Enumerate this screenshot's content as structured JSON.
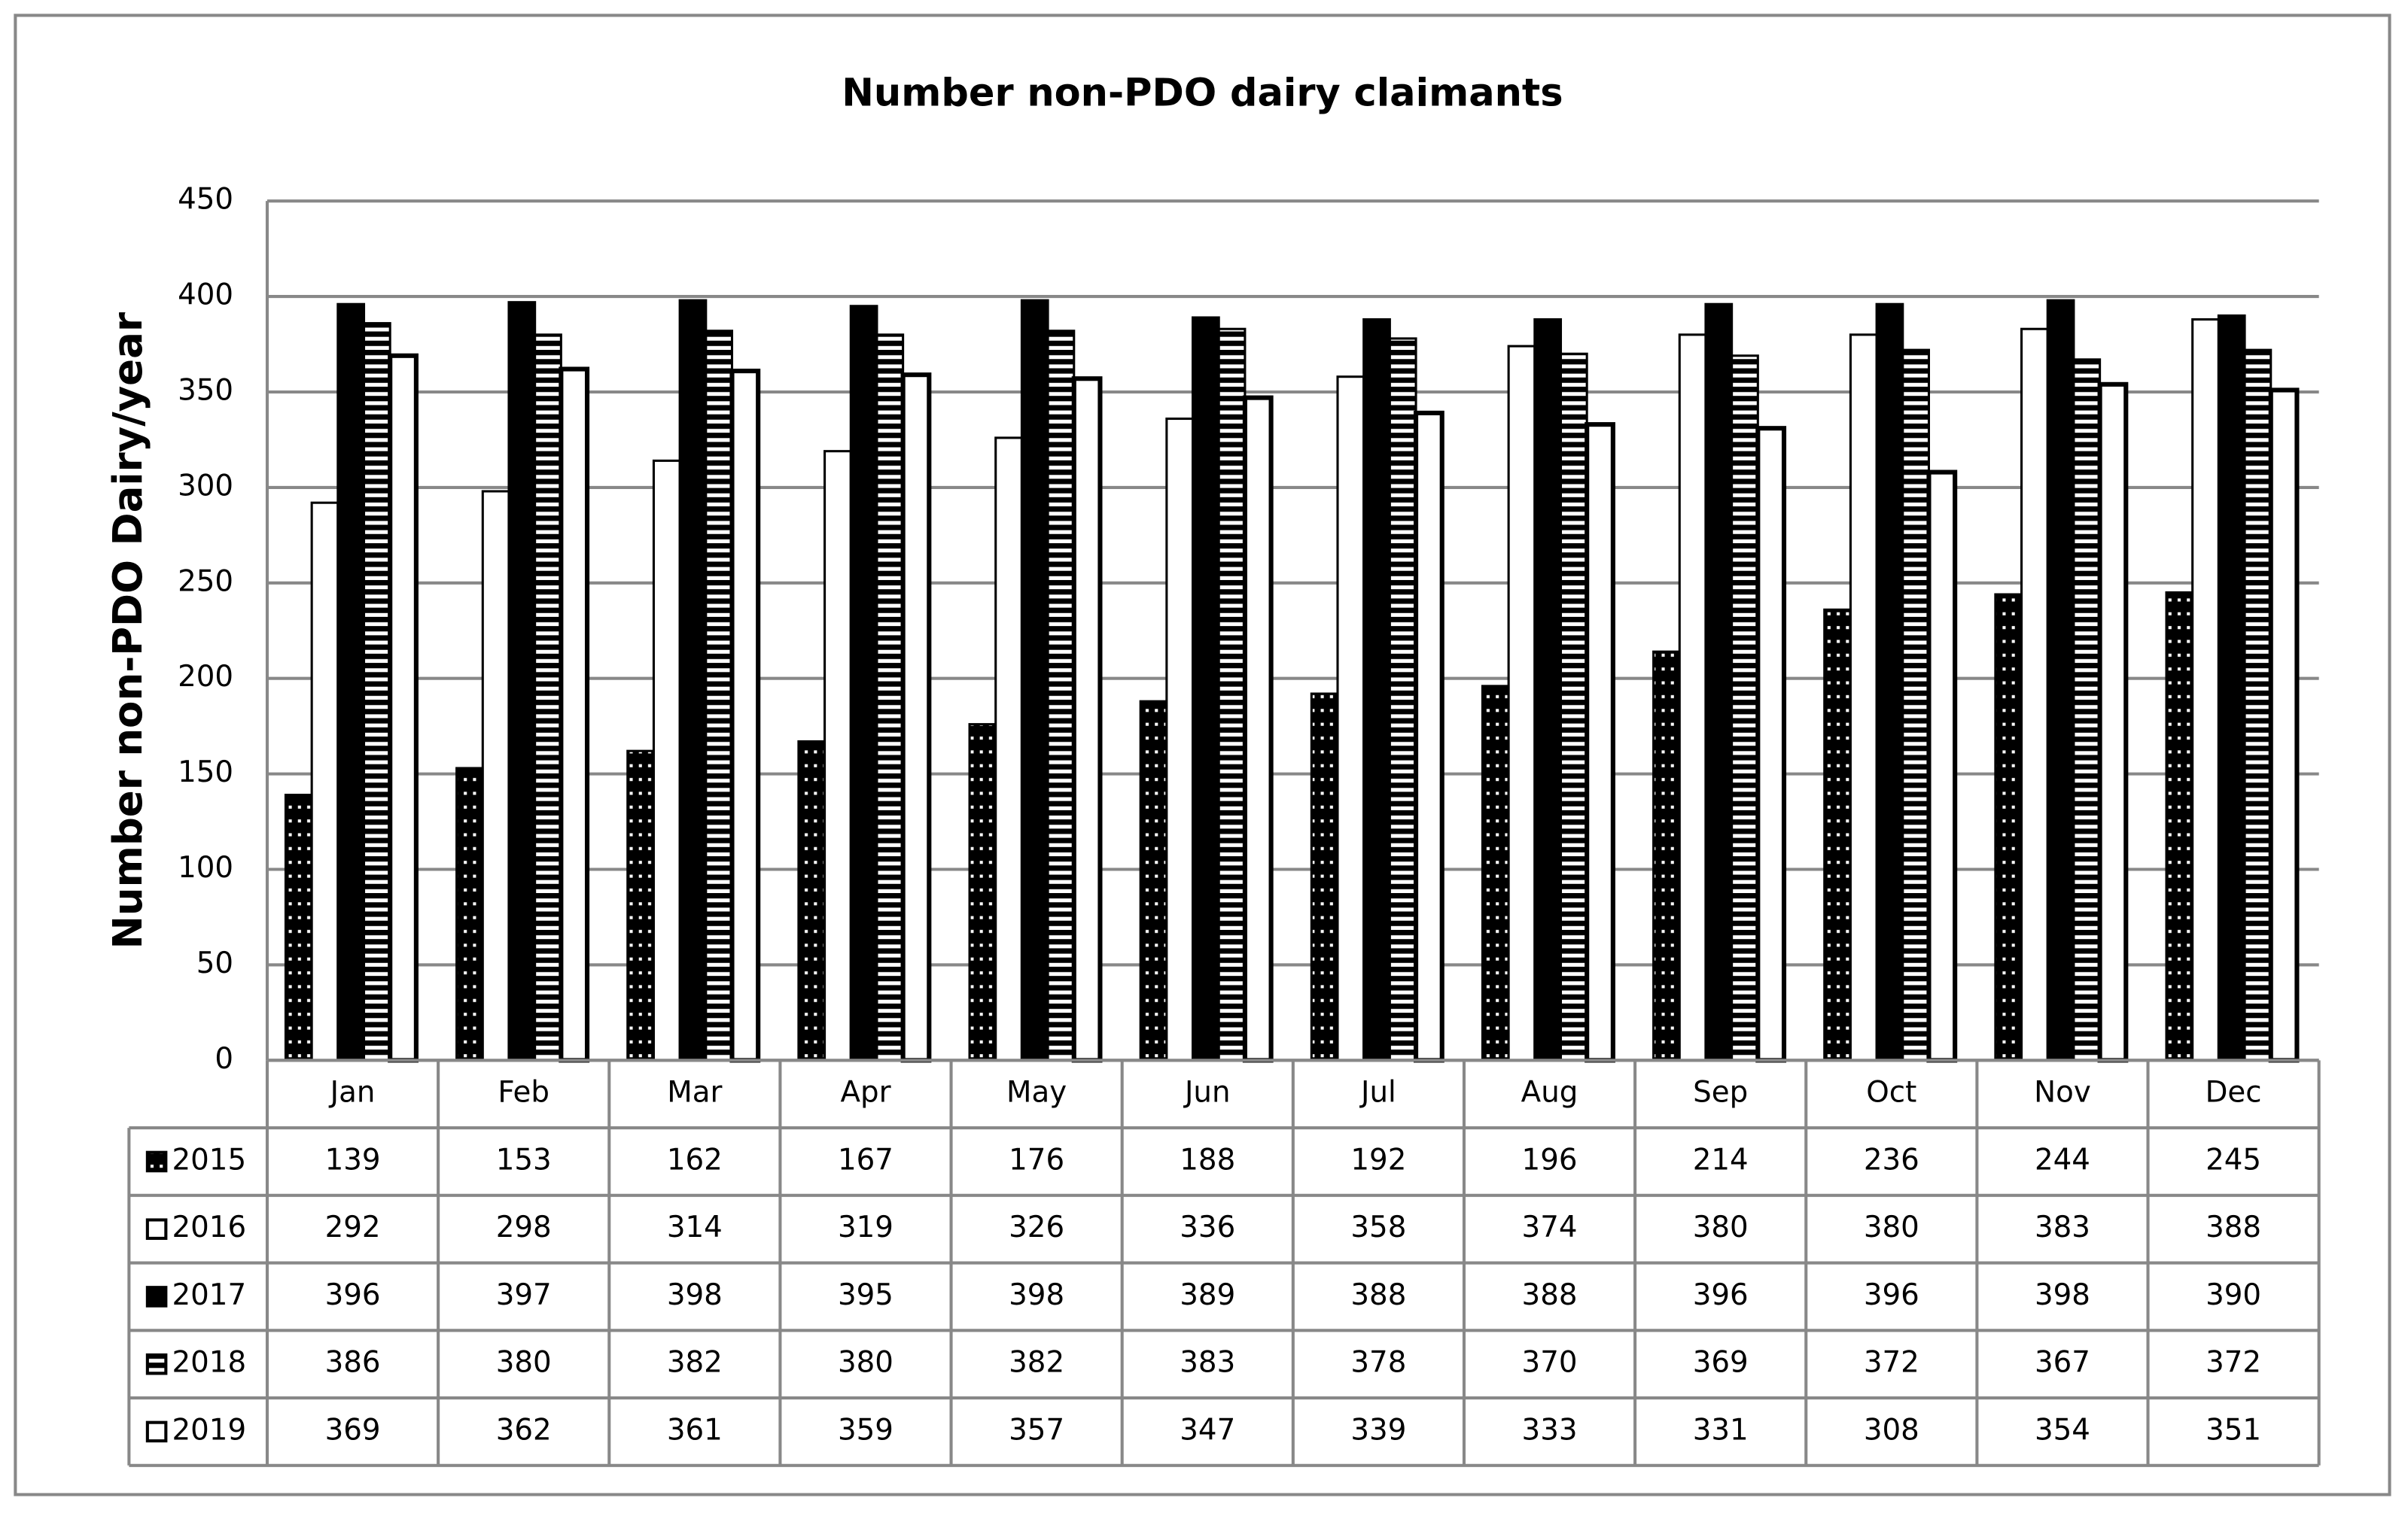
{
  "chart_data": {
    "type": "bar",
    "title": "Number  non-PDO dairy claimants",
    "y_label": "Number non-PDO Dairy/year",
    "categories": [
      "Jan",
      "Feb",
      "Mar",
      "Apr",
      "May",
      "Jun",
      "Jul",
      "Aug",
      "Sep",
      "Oct",
      "Nov",
      "Dec"
    ],
    "series": [
      {
        "name": "2015",
        "color": "#000000",
        "pattern": "dotted",
        "values": [
          139,
          153,
          162,
          167,
          176,
          188,
          192,
          196,
          214,
          236,
          244,
          245
        ]
      },
      {
        "name": "2016",
        "color": "#000000",
        "pattern": "open",
        "values": [
          292,
          298,
          314,
          319,
          326,
          336,
          358,
          374,
          380,
          380,
          383,
          388
        ]
      },
      {
        "name": "2017",
        "color": "#000000",
        "pattern": "solid",
        "values": [
          396,
          397,
          398,
          395,
          398,
          389,
          388,
          388,
          396,
          396,
          398,
          390
        ]
      },
      {
        "name": "2018",
        "color": "#000000",
        "pattern": "horizontal-stripes",
        "values": [
          386,
          380,
          382,
          380,
          382,
          383,
          378,
          370,
          369,
          372,
          367,
          372
        ]
      },
      {
        "name": "2019",
        "color": "#000000",
        "pattern": "vertical-stripes",
        "values": [
          369,
          362,
          361,
          359,
          357,
          347,
          339,
          333,
          331,
          308,
          354,
          351
        ]
      }
    ],
    "ylim": [
      0,
      450
    ],
    "yticks": [
      0,
      50,
      100,
      150,
      200,
      250,
      300,
      350,
      400,
      450
    ],
    "grid": true,
    "data_table": true
  }
}
